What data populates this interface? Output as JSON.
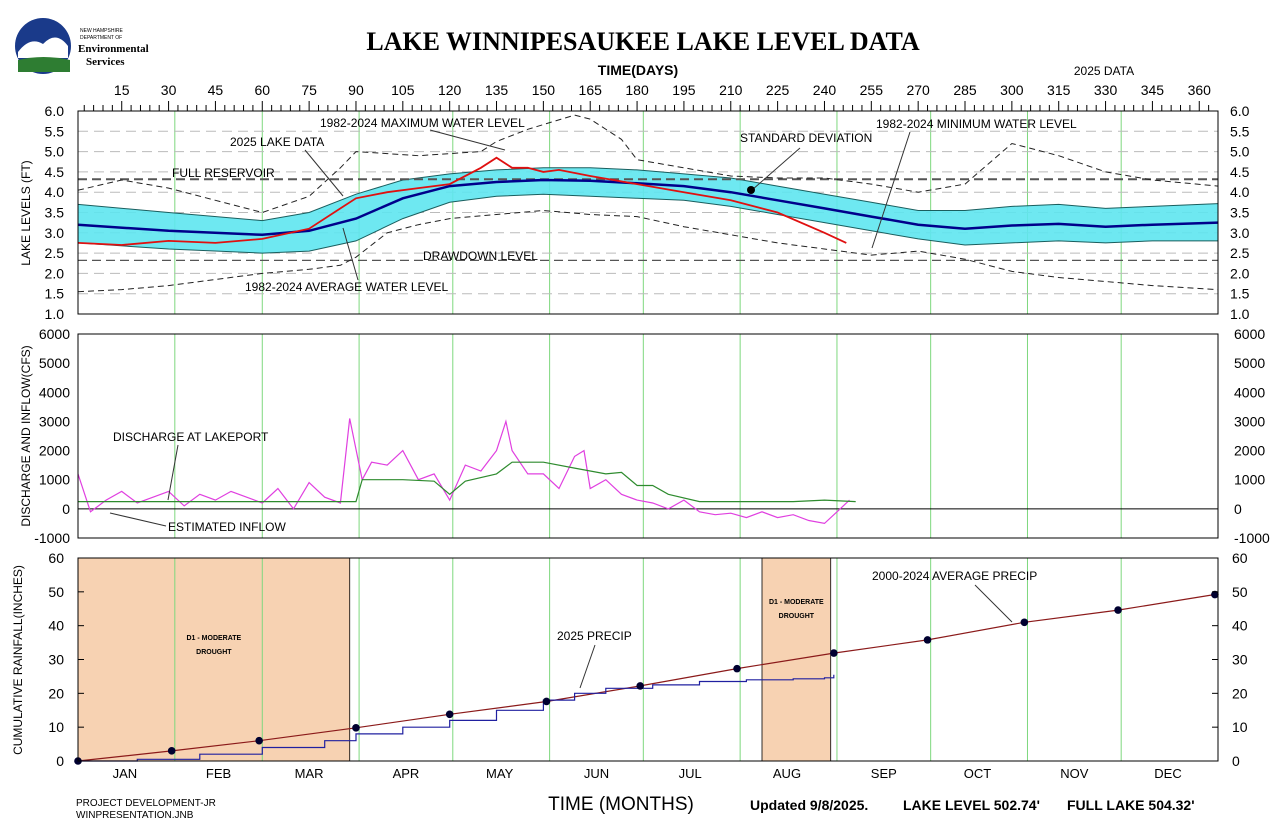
{
  "logo": {
    "line1": "NEW HAMPSHIRE",
    "line2": "DEPARTMENT OF",
    "line3": "Environmental",
    "line4": "Services"
  },
  "title": "LAKE WINNIPESAUKEE LAKE LEVEL DATA",
  "top_axis_label": "TIME(DAYS)",
  "data_year_label": "2025 DATA",
  "day_ticks": [
    15,
    30,
    45,
    60,
    75,
    90,
    105,
    120,
    135,
    150,
    165,
    180,
    195,
    210,
    225,
    240,
    255,
    270,
    285,
    300,
    315,
    330,
    345,
    360
  ],
  "months": [
    "JAN",
    "FEB",
    "MAR",
    "APR",
    "MAY",
    "JUN",
    "JUL",
    "AUG",
    "SEP",
    "OCT",
    "NOV",
    "DEC"
  ],
  "bottom_axis_label": "TIME (MONTHS)",
  "footer": {
    "left1": "PROJECT DEVELOPMENT-JR",
    "left2": "WINPRESENTATION.JNB",
    "updated": "Updated 9/8/2025.",
    "lake_level": "LAKE LEVEL 502.74'",
    "full_lake": "FULL LAKE 504.32'"
  },
  "colors": {
    "avg": "#00008b",
    "band": "#5ee6f0",
    "lake2025": "#e01010",
    "inflow": "#e040e0",
    "discharge": "#2e8b2e",
    "precip2025": "#2020a0",
    "avgPrecip": "#8b1a1a",
    "drought": "#f7d2b2",
    "monthGrid": "#7ed87e"
  },
  "chart_data": [
    {
      "type": "line",
      "ylabel": "LAKE LEVELS (FT)",
      "ylim": [
        1.0,
        6.0
      ],
      "xlim": [
        1,
        366
      ],
      "reference_lines": [
        {
          "label": "FULL RESERVOIR",
          "y": 4.32
        },
        {
          "label": "DRAWDOWN LEVEL",
          "y": 2.32
        }
      ],
      "annotations": [
        "1982-2024 MAXIMUM WATER LEVEL",
        "2025 LAKE DATA",
        "STANDARD DEVIATION",
        "1982-2024 MINIMUM WATER LEVEL",
        "1982-2024 AVERAGE WATER LEVEL"
      ],
      "series": [
        {
          "name": "1982-2024 AVERAGE WATER LEVEL",
          "x": [
            1,
            30,
            60,
            75,
            90,
            105,
            120,
            135,
            150,
            165,
            180,
            195,
            210,
            225,
            240,
            255,
            270,
            285,
            300,
            315,
            330,
            345,
            366
          ],
          "y": [
            3.2,
            3.05,
            2.95,
            3.05,
            3.35,
            3.85,
            4.15,
            4.25,
            4.3,
            4.28,
            4.22,
            4.15,
            4.0,
            3.8,
            3.6,
            3.4,
            3.2,
            3.1,
            3.18,
            3.22,
            3.15,
            3.2,
            3.25
          ]
        },
        {
          "name": "STANDARD DEVIATION",
          "x": [
            1,
            30,
            60,
            75,
            90,
            105,
            120,
            135,
            150,
            165,
            180,
            195,
            210,
            225,
            240,
            255,
            270,
            285,
            300,
            315,
            330,
            345,
            366
          ],
          "y_low": [
            2.75,
            2.6,
            2.5,
            2.55,
            2.8,
            3.35,
            3.75,
            3.9,
            3.95,
            3.9,
            3.85,
            3.8,
            3.65,
            3.45,
            3.25,
            3.05,
            2.85,
            2.7,
            2.75,
            2.8,
            2.75,
            2.8,
            2.8
          ],
          "y_high": [
            3.7,
            3.5,
            3.3,
            3.5,
            3.95,
            4.3,
            4.45,
            4.55,
            4.6,
            4.6,
            4.55,
            4.45,
            4.35,
            4.15,
            3.95,
            3.75,
            3.55,
            3.55,
            3.65,
            3.7,
            3.6,
            3.65,
            3.72
          ]
        },
        {
          "name": "2025 LAKE DATA",
          "x": [
            1,
            15,
            30,
            45,
            60,
            75,
            85,
            90,
            100,
            110,
            120,
            130,
            135,
            140,
            145,
            150,
            155,
            165,
            180,
            195,
            210,
            225,
            240,
            247
          ],
          "y": [
            2.75,
            2.7,
            2.8,
            2.75,
            2.85,
            3.1,
            3.6,
            3.85,
            4.0,
            4.1,
            4.2,
            4.6,
            4.85,
            4.6,
            4.6,
            4.5,
            4.55,
            4.4,
            4.2,
            4.0,
            3.8,
            3.5,
            3.0,
            2.75
          ]
        },
        {
          "name": "1982-2024 MAXIMUM WATER LEVEL",
          "x": [
            1,
            15,
            30,
            45,
            60,
            75,
            85,
            90,
            100,
            110,
            120,
            130,
            135,
            145,
            160,
            165,
            175,
            180,
            195,
            210,
            225,
            240,
            255,
            270,
            285,
            300,
            315,
            330,
            345,
            366
          ],
          "y": [
            4.05,
            4.3,
            4.1,
            3.8,
            3.5,
            3.9,
            4.6,
            5.0,
            4.95,
            4.9,
            4.95,
            5.0,
            5.25,
            5.55,
            5.9,
            5.8,
            5.3,
            4.8,
            4.6,
            4.4,
            4.35,
            4.35,
            4.2,
            4.0,
            4.2,
            5.2,
            4.9,
            4.5,
            4.3,
            4.15
          ]
        },
        {
          "name": "1982-2024 MINIMUM WATER LEVEL",
          "x": [
            1,
            15,
            30,
            45,
            60,
            75,
            85,
            90,
            100,
            110,
            120,
            135,
            150,
            165,
            180,
            195,
            210,
            225,
            240,
            255,
            270,
            285,
            300,
            315,
            330,
            345,
            366
          ],
          "y": [
            1.55,
            1.6,
            1.7,
            1.85,
            2.0,
            2.1,
            2.2,
            2.4,
            3.0,
            3.2,
            3.35,
            3.45,
            3.55,
            3.45,
            3.4,
            3.15,
            2.95,
            2.75,
            2.6,
            2.45,
            2.55,
            2.35,
            2.05,
            1.9,
            1.8,
            1.7,
            1.6
          ]
        }
      ]
    },
    {
      "type": "line",
      "ylabel": "DISCHARGE AND INFLOW(CFS)",
      "ylim": [
        -1000,
        6000
      ],
      "xlim": [
        1,
        366
      ],
      "series": [
        {
          "name": "DISCHARGE AT LAKEPORT",
          "x": [
            1,
            30,
            60,
            90,
            92,
            105,
            115,
            120,
            125,
            135,
            140,
            150,
            160,
            170,
            175,
            180,
            185,
            190,
            200,
            210,
            230,
            240,
            250
          ],
          "y": [
            250,
            250,
            250,
            250,
            1000,
            1000,
            950,
            500,
            950,
            1200,
            1600,
            1600,
            1400,
            1200,
            1250,
            800,
            800,
            500,
            250,
            250,
            250,
            300,
            250
          ]
        },
        {
          "name": "ESTIMATED INFLOW",
          "x": [
            1,
            5,
            10,
            15,
            20,
            25,
            30,
            35,
            40,
            45,
            50,
            55,
            60,
            65,
            70,
            75,
            80,
            85,
            88,
            92,
            95,
            100,
            105,
            110,
            115,
            120,
            125,
            130,
            135,
            138,
            140,
            145,
            150,
            155,
            160,
            163,
            165,
            170,
            175,
            180,
            185,
            190,
            195,
            200,
            205,
            210,
            215,
            220,
            225,
            230,
            235,
            240,
            245,
            248
          ],
          "y": [
            1200,
            -100,
            300,
            600,
            200,
            400,
            600,
            100,
            500,
            300,
            600,
            400,
            200,
            700,
            0,
            900,
            400,
            200,
            3100,
            1000,
            1600,
            1500,
            2000,
            1000,
            1200,
            300,
            1500,
            1300,
            2000,
            3000,
            2000,
            1200,
            1200,
            700,
            1800,
            2000,
            700,
            1000,
            500,
            300,
            200,
            0,
            300,
            -100,
            -200,
            -150,
            -300,
            -100,
            -300,
            -200,
            -400,
            -500,
            0,
            300
          ]
        }
      ],
      "annotations": [
        "DISCHARGE AT LAKEPORT",
        "ESTIMATED INFLOW"
      ]
    },
    {
      "type": "line",
      "ylabel": "CUMULATIVE RAINFALL(INCHES)",
      "ylim": [
        0,
        60
      ],
      "xlim": [
        1,
        366
      ],
      "drought_periods": [
        {
          "label": "D1 - MODERATE DROUGHT",
          "x_start": 1,
          "x_end": 88
        },
        {
          "label": "D1 - MODERATE DROUGHT",
          "x_start": 220,
          "x_end": 242
        }
      ],
      "series": [
        {
          "name": "2000-2024 AVERAGE PRECIP",
          "x": [
            1,
            31,
            59,
            90,
            120,
            151,
            181,
            212,
            243,
            273,
            304,
            334,
            365
          ],
          "y": [
            0,
            3,
            6,
            9.8,
            13.8,
            17.6,
            22.2,
            27.3,
            31.9,
            35.8,
            41,
            44.6,
            49.2
          ]
        },
        {
          "name": "2025 PRECIP",
          "x": [
            1,
            20,
            40,
            60,
            80,
            90,
            105,
            120,
            135,
            150,
            160,
            170,
            185,
            200,
            215,
            230,
            240,
            243
          ],
          "y": [
            0,
            0.5,
            2,
            4,
            6,
            8,
            10,
            12,
            15,
            18,
            20,
            21.5,
            22.5,
            23.5,
            24,
            24.3,
            24.6,
            25.5
          ]
        }
      ],
      "annotations": [
        "2000-2024 AVERAGE PRECIP",
        "2025 PRECIP"
      ]
    }
  ]
}
